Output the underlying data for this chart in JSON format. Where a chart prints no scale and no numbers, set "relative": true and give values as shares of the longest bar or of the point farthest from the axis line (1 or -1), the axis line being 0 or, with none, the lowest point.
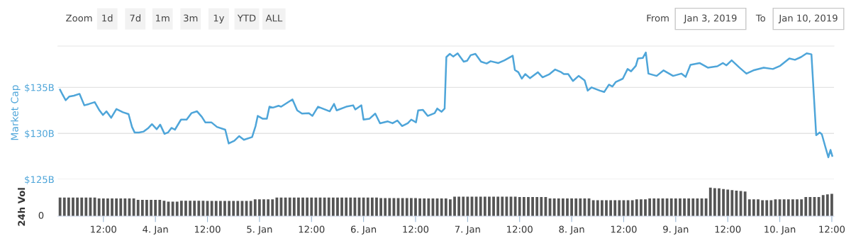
{
  "chart_data": [
    {
      "type": "other",
      "annotations": [
        "Zoom",
        "1d",
        "7d",
        "1m",
        "3m",
        "1y",
        "YTD",
        "ALL",
        "From",
        "Jan 3, 2019",
        "To",
        "Jan 10, 2019"
      ]
    },
    {
      "type": "line",
      "ylabel": "Market Cap",
      "xlim": [
        "2019-01-03T01:30",
        "2019-01-10T12:30"
      ],
      "ylim": [
        125,
        139.5
      ],
      "yticks": [
        {
          "value": 125,
          "label": "$125B"
        },
        {
          "value": 130,
          "label": "$130B"
        },
        {
          "value": 135,
          "label": "$135B"
        }
      ],
      "grid": "y",
      "tick_labels": "y",
      "marker": "none",
      "line_style": "solid",
      "series": [
        {
          "color": "#4ea5d9",
          "x": [
            "2019-01-03T02:00",
            "2019-01-03T02:36",
            "2019-01-03T03:18",
            "2019-01-03T04:06",
            "2019-01-03T05:12",
            "2019-01-03T06:30",
            "2019-01-03T07:36",
            "2019-01-03T08:42",
            "2019-01-03T10:00",
            "2019-01-03T11:06",
            "2019-01-03T11:54",
            "2019-01-03T12:42",
            "2019-01-03T13:48",
            "2019-01-03T15:00",
            "2019-01-03T16:30",
            "2019-01-03T17:48",
            "2019-01-03T18:36",
            "2019-01-03T19:12",
            "2019-01-03T20:12",
            "2019-01-03T21:18",
            "2019-01-03T22:24",
            "2019-01-03T23:12",
            "2019-01-04T00:18",
            "2019-01-04T01:06",
            "2019-01-04T02:06",
            "2019-01-04T02:54",
            "2019-01-04T03:42",
            "2019-01-04T04:30",
            "2019-01-04T05:54",
            "2019-01-04T07:12",
            "2019-01-04T08:18",
            "2019-01-04T09:36",
            "2019-01-04T10:42",
            "2019-01-04T11:30",
            "2019-01-04T12:54",
            "2019-01-04T14:12",
            "2019-01-04T16:06",
            "2019-01-04T16:54",
            "2019-01-04T18:12",
            "2019-01-04T19:18",
            "2019-01-04T20:24",
            "2019-01-04T22:18",
            "2019-01-04T23:06",
            "2019-01-04T23:36",
            "2019-01-05T00:42",
            "2019-01-05T01:42",
            "2019-01-05T02:18",
            "2019-01-05T03:06",
            "2019-01-05T04:24",
            "2019-01-05T05:00",
            "2019-01-05T07:36",
            "2019-01-05T08:42",
            "2019-01-05T09:48",
            "2019-01-05T11:24",
            "2019-01-05T12:12",
            "2019-01-05T13:30",
            "2019-01-05T16:12",
            "2019-01-05T17:12",
            "2019-01-05T17:48",
            "2019-01-05T20:00",
            "2019-01-05T21:36",
            "2019-01-05T22:06",
            "2019-01-05T23:30",
            "2019-01-06T00:00",
            "2019-01-06T01:24",
            "2019-01-06T02:42",
            "2019-01-06T03:48",
            "2019-01-06T05:36",
            "2019-01-06T06:42",
            "2019-01-06T07:48",
            "2019-01-06T08:54",
            "2019-01-06T10:12",
            "2019-01-06T11:00",
            "2019-01-06T12:06",
            "2019-01-06T12:36",
            "2019-01-06T13:42",
            "2019-01-06T14:48",
            "2019-01-06T16:24",
            "2019-01-06T17:00",
            "2019-01-06T18:00",
            "2019-01-06T18:42",
            "2019-01-06T19:06",
            "2019-01-06T19:54",
            "2019-01-06T20:42",
            "2019-01-06T21:42",
            "2019-01-06T23:06",
            "2019-01-06T23:54",
            "2019-01-07T00:42",
            "2019-01-07T01:48",
            "2019-01-07T03:06",
            "2019-01-07T04:24",
            "2019-01-07T05:18",
            "2019-01-07T07:06",
            "2019-01-07T08:30",
            "2019-01-07T10:24",
            "2019-01-07T10:54",
            "2019-01-07T11:42",
            "2019-01-07T12:30",
            "2019-01-07T13:18",
            "2019-01-07T14:24",
            "2019-01-07T16:12",
            "2019-01-07T17:18",
            "2019-01-07T18:54",
            "2019-01-07T20:12",
            "2019-01-07T21:36",
            "2019-01-07T22:12",
            "2019-01-07T23:12",
            "2019-01-08T00:18",
            "2019-01-08T01:36",
            "2019-01-08T03:00",
            "2019-01-08T03:42",
            "2019-01-08T04:36",
            "2019-01-08T06:30",
            "2019-01-08T07:30",
            "2019-01-08T08:36",
            "2019-01-08T09:24",
            "2019-01-08T10:12",
            "2019-01-08T11:48",
            "2019-01-08T12:54",
            "2019-01-08T13:42",
            "2019-01-08T14:48",
            "2019-01-08T15:18",
            "2019-01-08T16:24",
            "2019-01-08T17:06",
            "2019-01-08T17:42",
            "2019-01-08T19:36",
            "2019-01-08T21:12",
            "2019-01-08T23:24",
            "2019-01-09T01:18",
            "2019-01-09T02:18",
            "2019-01-09T03:24",
            "2019-01-09T05:30",
            "2019-01-09T07:24",
            "2019-01-09T09:36",
            "2019-01-09T10:54",
            "2019-01-09T11:42",
            "2019-01-09T12:54",
            "2019-01-09T14:42",
            "2019-01-09T16:18",
            "2019-01-09T17:54",
            "2019-01-09T20:18",
            "2019-01-09T22:24",
            "2019-01-10T00:06",
            "2019-01-10T02:12",
            "2019-01-10T03:30",
            "2019-01-10T04:54",
            "2019-01-10T06:12",
            "2019-01-10T07:18",
            "2019-01-10T07:48",
            "2019-01-10T08:24",
            "2019-01-10T09:12",
            "2019-01-10T09:42",
            "2019-01-10T10:30",
            "2019-01-10T11:12",
            "2019-01-10T11:42",
            "2019-01-10T12:06"
          ],
          "values": [
            134.75,
            134.2,
            133.6,
            134.0,
            134.1,
            134.3,
            133.05,
            133.2,
            133.4,
            132.5,
            132.0,
            132.4,
            131.7,
            132.65,
            132.3,
            132.1,
            130.7,
            130.1,
            130.1,
            130.2,
            130.6,
            131.0,
            130.45,
            130.95,
            129.95,
            130.1,
            130.6,
            130.4,
            131.5,
            131.5,
            132.2,
            132.4,
            131.8,
            131.2,
            131.2,
            130.7,
            130.4,
            128.9,
            129.2,
            129.7,
            129.3,
            129.6,
            130.8,
            131.9,
            131.6,
            131.6,
            132.9,
            132.8,
            133.0,
            132.9,
            133.7,
            132.5,
            132.15,
            132.2,
            131.9,
            132.9,
            132.4,
            133.2,
            132.5,
            132.9,
            133.05,
            132.6,
            133.05,
            131.5,
            131.6,
            132.15,
            131.1,
            131.3,
            131.1,
            131.4,
            130.8,
            131.1,
            131.5,
            131.2,
            132.5,
            132.55,
            131.9,
            132.2,
            132.7,
            132.35,
            132.7,
            138.3,
            138.65,
            138.35,
            138.7,
            137.8,
            137.9,
            138.5,
            138.65,
            137.8,
            137.6,
            137.85,
            137.65,
            137.95,
            138.45,
            136.9,
            136.65,
            135.95,
            136.45,
            136.0,
            136.65,
            136.1,
            136.45,
            136.95,
            136.65,
            136.45,
            136.45,
            135.7,
            136.25,
            135.75,
            134.65,
            135.0,
            134.65,
            134.5,
            135.3,
            135.1,
            135.6,
            135.95,
            137.0,
            136.75,
            137.35,
            138.15,
            138.2,
            138.8,
            136.5,
            136.25,
            136.85,
            136.25,
            136.5,
            136.15,
            137.45,
            137.65,
            137.15,
            137.3,
            137.65,
            137.4,
            137.95,
            137.15,
            136.5,
            136.85,
            137.15,
            137.0,
            137.35,
            138.15,
            138.0,
            138.3,
            138.7,
            138.6,
            134.6,
            129.8,
            130.1,
            129.9,
            128.55,
            127.4,
            128.2,
            127.55
          ]
        }
      ]
    },
    {
      "type": "bar",
      "relative": true,
      "ylabel": "24h Vol",
      "annotations": [
        "0"
      ],
      "xlim": [
        "2019-01-03T01:30",
        "2019-01-10T12:30"
      ],
      "tick_labels": "x",
      "grid": false,
      "xticks": [
        {
          "value": "2019-01-03T12:00",
          "label": "12:00"
        },
        {
          "value": "2019-01-04",
          "label": "4. Jan"
        },
        {
          "value": "2019-01-04T12:00",
          "label": "12:00"
        },
        {
          "value": "2019-01-05",
          "label": "5. Jan"
        },
        {
          "value": "2019-01-05T12:00",
          "label": "12:00"
        },
        {
          "value": "2019-01-06",
          "label": "6. Jan"
        },
        {
          "value": "2019-01-06T12:00",
          "label": "12:00"
        },
        {
          "value": "2019-01-07",
          "label": "7. Jan"
        },
        {
          "value": "2019-01-07T12:00",
          "label": "12:00"
        },
        {
          "value": "2019-01-08",
          "label": "8. Jan"
        },
        {
          "value": "2019-01-08T12:00",
          "label": "12:00"
        },
        {
          "value": "2019-01-09",
          "label": "9. Jan"
        },
        {
          "value": "2019-01-09T12:00",
          "label": "12:00"
        },
        {
          "value": "2019-01-10",
          "label": "10. Jan"
        },
        {
          "value": "2019-01-10T12:00",
          "label": "12:00"
        }
      ],
      "series": [
        {
          "color": "#555555",
          "x": [
            "2019-01-03T02:00",
            "2019-01-03T03:00",
            "2019-01-03T04:00",
            "2019-01-03T05:00",
            "2019-01-03T06:00",
            "2019-01-03T07:00",
            "2019-01-03T08:00",
            "2019-01-03T09:00",
            "2019-01-03T10:00",
            "2019-01-03T11:00",
            "2019-01-03T12:00",
            "2019-01-03T13:00",
            "2019-01-03T14:00",
            "2019-01-03T15:00",
            "2019-01-03T16:00",
            "2019-01-03T17:00",
            "2019-01-03T18:00",
            "2019-01-03T19:00",
            "2019-01-03T20:00",
            "2019-01-03T21:00",
            "2019-01-03T22:00",
            "2019-01-03T23:00",
            "2019-01-04T00:00",
            "2019-01-04T01:00",
            "2019-01-04T02:00",
            "2019-01-04T03:00",
            "2019-01-04T04:00",
            "2019-01-04T05:00",
            "2019-01-04T06:00",
            "2019-01-04T07:00",
            "2019-01-04T08:00",
            "2019-01-04T09:00",
            "2019-01-04T10:00",
            "2019-01-04T11:00",
            "2019-01-04T12:00",
            "2019-01-04T13:00",
            "2019-01-04T14:00",
            "2019-01-04T15:00",
            "2019-01-04T16:00",
            "2019-01-04T17:00",
            "2019-01-04T18:00",
            "2019-01-04T19:00",
            "2019-01-04T20:00",
            "2019-01-04T21:00",
            "2019-01-04T22:00",
            "2019-01-04T23:00",
            "2019-01-05T00:00",
            "2019-01-05T01:00",
            "2019-01-05T02:00",
            "2019-01-05T03:00",
            "2019-01-05T04:00",
            "2019-01-05T05:00",
            "2019-01-05T06:00",
            "2019-01-05T07:00",
            "2019-01-05T08:00",
            "2019-01-05T09:00",
            "2019-01-05T10:00",
            "2019-01-05T11:00",
            "2019-01-05T12:00",
            "2019-01-05T13:00",
            "2019-01-05T14:00",
            "2019-01-05T15:00",
            "2019-01-05T16:00",
            "2019-01-05T17:00",
            "2019-01-05T18:00",
            "2019-01-05T19:00",
            "2019-01-05T20:00",
            "2019-01-05T21:00",
            "2019-01-05T22:00",
            "2019-01-05T23:00",
            "2019-01-06T00:00",
            "2019-01-06T01:00",
            "2019-01-06T02:00",
            "2019-01-06T03:00",
            "2019-01-06T04:00",
            "2019-01-06T05:00",
            "2019-01-06T06:00",
            "2019-01-06T07:00",
            "2019-01-06T08:00",
            "2019-01-06T09:00",
            "2019-01-06T10:00",
            "2019-01-06T11:00",
            "2019-01-06T12:00",
            "2019-01-06T13:00",
            "2019-01-06T14:00",
            "2019-01-06T15:00",
            "2019-01-06T16:00",
            "2019-01-06T17:00",
            "2019-01-06T18:00",
            "2019-01-06T19:00",
            "2019-01-06T20:00",
            "2019-01-06T21:00",
            "2019-01-06T22:00",
            "2019-01-06T23:00",
            "2019-01-07T00:00",
            "2019-01-07T01:00",
            "2019-01-07T02:00",
            "2019-01-07T03:00",
            "2019-01-07T04:00",
            "2019-01-07T05:00",
            "2019-01-07T06:00",
            "2019-01-07T07:00",
            "2019-01-07T08:00",
            "2019-01-07T09:00",
            "2019-01-07T10:00",
            "2019-01-07T11:00",
            "2019-01-07T12:00",
            "2019-01-07T13:00",
            "2019-01-07T14:00",
            "2019-01-07T15:00",
            "2019-01-07T16:00",
            "2019-01-07T17:00",
            "2019-01-07T18:00",
            "2019-01-07T19:00",
            "2019-01-07T20:00",
            "2019-01-07T21:00",
            "2019-01-07T22:00",
            "2019-01-07T23:00",
            "2019-01-08T00:00",
            "2019-01-08T01:00",
            "2019-01-08T02:00",
            "2019-01-08T03:00",
            "2019-01-08T04:00",
            "2019-01-08T05:00",
            "2019-01-08T06:00",
            "2019-01-08T07:00",
            "2019-01-08T08:00",
            "2019-01-08T09:00",
            "2019-01-08T10:00",
            "2019-01-08T11:00",
            "2019-01-08T12:00",
            "2019-01-08T13:00",
            "2019-01-08T14:00",
            "2019-01-08T15:00",
            "2019-01-08T16:00",
            "2019-01-08T17:00",
            "2019-01-08T18:00",
            "2019-01-08T19:00",
            "2019-01-08T20:00",
            "2019-01-08T21:00",
            "2019-01-08T22:00",
            "2019-01-08T23:00",
            "2019-01-09T00:00",
            "2019-01-09T01:00",
            "2019-01-09T02:00",
            "2019-01-09T03:00",
            "2019-01-09T04:00",
            "2019-01-09T05:00",
            "2019-01-09T06:00",
            "2019-01-09T07:00",
            "2019-01-09T08:00",
            "2019-01-09T09:00",
            "2019-01-09T10:00",
            "2019-01-09T11:00",
            "2019-01-09T12:00",
            "2019-01-09T13:00",
            "2019-01-09T14:00",
            "2019-01-09T15:00",
            "2019-01-09T16:00",
            "2019-01-09T17:00",
            "2019-01-09T18:00",
            "2019-01-09T19:00",
            "2019-01-09T20:00",
            "2019-01-09T21:00",
            "2019-01-09T22:00",
            "2019-01-09T23:00",
            "2019-01-10T00:00",
            "2019-01-10T01:00",
            "2019-01-10T02:00",
            "2019-01-10T03:00",
            "2019-01-10T04:00",
            "2019-01-10T05:00",
            "2019-01-10T06:00",
            "2019-01-10T07:00",
            "2019-01-10T08:00",
            "2019-01-10T09:00",
            "2019-01-10T10:00",
            "2019-01-10T11:00",
            "2019-01-10T12:00"
          ],
          "values": [
            0.65,
            0.65,
            0.65,
            0.65,
            0.65,
            0.65,
            0.65,
            0.65,
            0.65,
            0.62,
            0.62,
            0.62,
            0.62,
            0.62,
            0.62,
            0.62,
            0.62,
            0.62,
            0.57,
            0.57,
            0.57,
            0.57,
            0.57,
            0.57,
            0.54,
            0.51,
            0.51,
            0.51,
            0.54,
            0.54,
            0.54,
            0.54,
            0.54,
            0.54,
            0.53,
            0.53,
            0.53,
            0.53,
            0.53,
            0.53,
            0.53,
            0.53,
            0.53,
            0.53,
            0.53,
            0.59,
            0.59,
            0.59,
            0.59,
            0.59,
            0.65,
            0.65,
            0.65,
            0.65,
            0.65,
            0.65,
            0.65,
            0.65,
            0.65,
            0.65,
            0.65,
            0.65,
            0.65,
            0.65,
            0.65,
            0.65,
            0.65,
            0.65,
            0.65,
            0.65,
            0.65,
            0.65,
            0.65,
            0.65,
            0.63,
            0.63,
            0.63,
            0.63,
            0.63,
            0.63,
            0.63,
            0.63,
            0.63,
            0.62,
            0.62,
            0.62,
            0.62,
            0.62,
            0.62,
            0.62,
            0.59,
            0.68,
            0.68,
            0.68,
            0.68,
            0.68,
            0.68,
            0.68,
            0.68,
            0.68,
            0.68,
            0.68,
            0.68,
            0.68,
            0.68,
            0.68,
            0.67,
            0.67,
            0.67,
            0.67,
            0.67,
            0.67,
            0.67,
            0.62,
            0.62,
            0.62,
            0.62,
            0.62,
            0.62,
            0.62,
            0.62,
            0.62,
            0.62,
            0.56,
            0.56,
            0.56,
            0.56,
            0.56,
            0.56,
            0.56,
            0.56,
            0.56,
            0.56,
            0.59,
            0.59,
            0.59,
            0.62,
            0.62,
            0.62,
            0.62,
            0.62,
            0.62,
            0.62,
            0.62,
            0.62,
            0.62,
            0.62,
            0.62,
            0.62,
            0.62,
            1.0,
            0.98,
            0.97,
            0.95,
            0.93,
            0.91,
            0.89,
            0.88,
            0.86,
            0.59,
            0.59,
            0.59,
            0.56,
            0.56,
            0.56,
            0.59,
            0.59,
            0.59,
            0.59,
            0.59,
            0.59,
            0.59,
            0.67,
            0.67,
            0.67,
            0.67,
            0.74,
            0.76,
            0.78
          ]
        }
      ]
    }
  ]
}
